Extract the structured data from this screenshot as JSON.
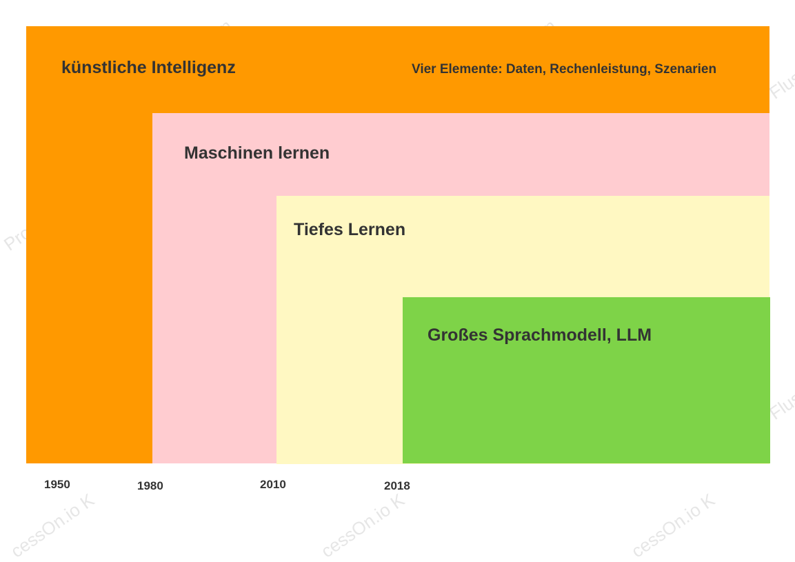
{
  "colors": {
    "ai": "#ff9900",
    "ml": "#ffccd0",
    "dl": "#fff8c2",
    "llm": "#7ed348"
  },
  "layers": {
    "ai": {
      "label": "künstliche Intelligenz",
      "note": "Vier Elemente: Daten, Rechenleistung, Szenarien"
    },
    "ml": {
      "label": "Maschinen lernen"
    },
    "dl": {
      "label": "Tiefes Lernen"
    },
    "llm": {
      "label": "Großes Sprachmodell, LLM"
    }
  },
  "timeline": [
    "1950",
    "1980",
    "2010",
    "2018"
  ],
  "watermarks": [
    "ProcessOn.io Kostenlose Programmierung Flussdiagramm"
  ]
}
